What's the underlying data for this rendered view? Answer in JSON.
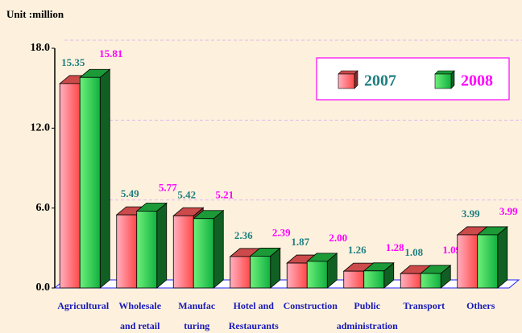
{
  "chart_data": {
    "type": "bar3d",
    "unit_label": "Unit :million",
    "categories": [
      [
        "Agricultural"
      ],
      [
        "Wholesale",
        "and retail"
      ],
      [
        "Manufac",
        "turing"
      ],
      [
        "Hotel and",
        "Restaurants"
      ],
      [
        "Construction"
      ],
      [
        "Public",
        "administration"
      ],
      [
        "Transport"
      ],
      [
        "Others"
      ]
    ],
    "series": [
      {
        "name": "2007",
        "color": "#ff5c5c",
        "label_color": "#1f7f80",
        "values": [
          15.35,
          5.49,
          5.42,
          2.36,
          1.87,
          1.26,
          1.08,
          3.99
        ],
        "value_labels": [
          "15.35",
          "5.49",
          "5.42",
          "2.36",
          "1.87",
          "1.26",
          "1.08",
          "3.99"
        ]
      },
      {
        "name": "2008",
        "color": "#22c045",
        "label_color": "#ff00ff",
        "values": [
          15.81,
          5.77,
          5.21,
          2.39,
          2.0,
          1.28,
          1.09,
          3.99
        ],
        "value_labels": [
          "15.81",
          "5.77",
          "5.21",
          "2.39",
          "2.00",
          "1.28",
          "1.09",
          "3.99"
        ]
      }
    ],
    "ylim": [
      0,
      18
    ],
    "yticks": [
      {
        "value": 0,
        "label": "0.0"
      },
      {
        "value": 6,
        "label": "6.0"
      },
      {
        "value": 12,
        "label": "12.0"
      },
      {
        "value": 18,
        "label": "18.0"
      }
    ],
    "grid": true
  }
}
